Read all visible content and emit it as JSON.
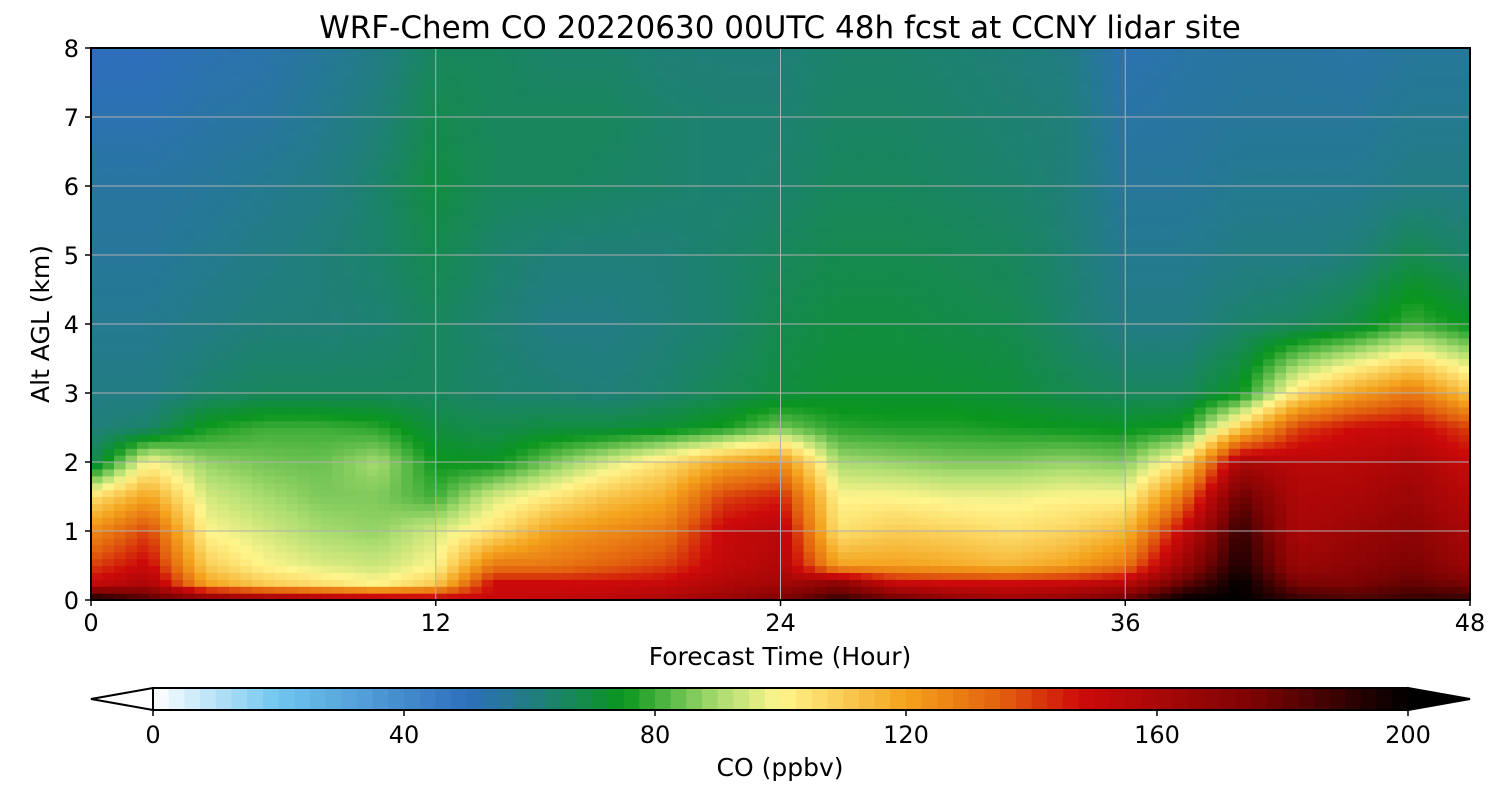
{
  "chart_data": {
    "type": "heatmap",
    "title": "WRF-Chem CO  20220630 00UTC 48h fcst at CCNY lidar site",
    "xlabel": "Forecast Time (Hour)",
    "ylabel": "Alt AGL (km)",
    "xlim": [
      0,
      48
    ],
    "ylim": [
      0,
      8
    ],
    "xticks": [
      "0",
      "12",
      "24",
      "36",
      "48"
    ],
    "yticks": [
      "0",
      "1",
      "2",
      "3",
      "4",
      "5",
      "6",
      "7",
      "8"
    ],
    "grid": true,
    "colorbar": {
      "label": "CO  (ppbv)",
      "range": [
        0,
        200
      ],
      "ticks": [
        "0",
        "40",
        "80",
        "120",
        "160",
        "200"
      ],
      "extend": "both",
      "colors": [
        {
          "value": 0,
          "color": "#ffffff"
        },
        {
          "value": 20,
          "color": "#6fc5ef"
        },
        {
          "value": 50,
          "color": "#2e6fbc"
        },
        {
          "value": 62,
          "color": "#1f7f78"
        },
        {
          "value": 75,
          "color": "#0a961e"
        },
        {
          "value": 90,
          "color": "#a9dc70"
        },
        {
          "value": 100,
          "color": "#fff58c"
        },
        {
          "value": 120,
          "color": "#f4a21c"
        },
        {
          "value": 135,
          "color": "#e2610e"
        },
        {
          "value": 148,
          "color": "#cd0a0a"
        },
        {
          "value": 175,
          "color": "#7e0303"
        },
        {
          "value": 200,
          "color": "#000000"
        }
      ]
    },
    "hours": [
      0,
      2,
      4,
      6,
      8,
      10,
      12,
      14,
      16,
      18,
      20,
      22,
      24,
      26,
      28,
      30,
      32,
      34,
      36,
      38,
      40,
      42,
      44,
      46,
      48
    ],
    "altitudes_km": [
      0,
      0.25,
      0.5,
      1,
      1.5,
      2,
      2.5,
      3,
      4,
      5,
      6,
      7,
      8
    ],
    "values_ppbv": [
      [
        200,
        150,
        140,
        125,
        105,
        66,
        62,
        60,
        58,
        56,
        55,
        52,
        50
      ],
      [
        185,
        160,
        150,
        140,
        120,
        100,
        64,
        60,
        58,
        56,
        55,
        52,
        50
      ],
      [
        175,
        120,
        110,
        100,
        95,
        88,
        76,
        64,
        60,
        58,
        56,
        54,
        52
      ],
      [
        170,
        110,
        100,
        95,
        90,
        85,
        80,
        66,
        62,
        60,
        58,
        55,
        53
      ],
      [
        165,
        105,
        96,
        90,
        86,
        84,
        80,
        66,
        62,
        62,
        60,
        58,
        56
      ],
      [
        160,
        100,
        94,
        88,
        86,
        90,
        78,
        66,
        63,
        64,
        64,
        62,
        60
      ],
      [
        155,
        110,
        100,
        95,
        80,
        75,
        70,
        66,
        66,
        68,
        70,
        68,
        66
      ],
      [
        150,
        148,
        130,
        105,
        95,
        74,
        68,
        64,
        63,
        64,
        66,
        66,
        66
      ],
      [
        152,
        148,
        130,
        120,
        103,
        85,
        70,
        63,
        60,
        62,
        66,
        66,
        64
      ],
      [
        155,
        148,
        135,
        125,
        112,
        95,
        70,
        62,
        60,
        62,
        65,
        66,
        64
      ],
      [
        160,
        150,
        140,
        130,
        118,
        105,
        72,
        64,
        62,
        62,
        64,
        64,
        62
      ],
      [
        165,
        158,
        152,
        150,
        140,
        118,
        76,
        67,
        64,
        64,
        63,
        63,
        62
      ],
      [
        175,
        162,
        158,
        155,
        145,
        125,
        85,
        70,
        68,
        66,
        64,
        63,
        62
      ],
      [
        190,
        170,
        120,
        105,
        100,
        90,
        78,
        72,
        70,
        68,
        66,
        65,
        64
      ],
      [
        180,
        150,
        120,
        110,
        100,
        88,
        77,
        72,
        70,
        68,
        66,
        65,
        64
      ],
      [
        170,
        148,
        118,
        108,
        98,
        86,
        77,
        72,
        69,
        67,
        65,
        64,
        63
      ],
      [
        165,
        148,
        115,
        105,
        98,
        86,
        76,
        71,
        68,
        66,
        64,
        63,
        62
      ],
      [
        170,
        150,
        120,
        108,
        100,
        88,
        75,
        68,
        64,
        63,
        62,
        62,
        60
      ],
      [
        180,
        155,
        130,
        115,
        100,
        86,
        74,
        66,
        60,
        58,
        56,
        54,
        52
      ],
      [
        200,
        180,
        165,
        150,
        130,
        105,
        76,
        66,
        60,
        58,
        56,
        55,
        54
      ],
      [
        200,
        200,
        195,
        190,
        180,
        160,
        110,
        74,
        64,
        60,
        58,
        56,
        55
      ],
      [
        190,
        175,
        165,
        160,
        158,
        155,
        140,
        105,
        66,
        60,
        58,
        56,
        55
      ],
      [
        185,
        175,
        170,
        165,
        160,
        155,
        148,
        120,
        70,
        62,
        58,
        56,
        54
      ],
      [
        190,
        180,
        175,
        170,
        165,
        160,
        150,
        130,
        80,
        68,
        60,
        58,
        56
      ],
      [
        190,
        175,
        165,
        160,
        155,
        150,
        140,
        112,
        74,
        64,
        60,
        58,
        56
      ]
    ]
  }
}
